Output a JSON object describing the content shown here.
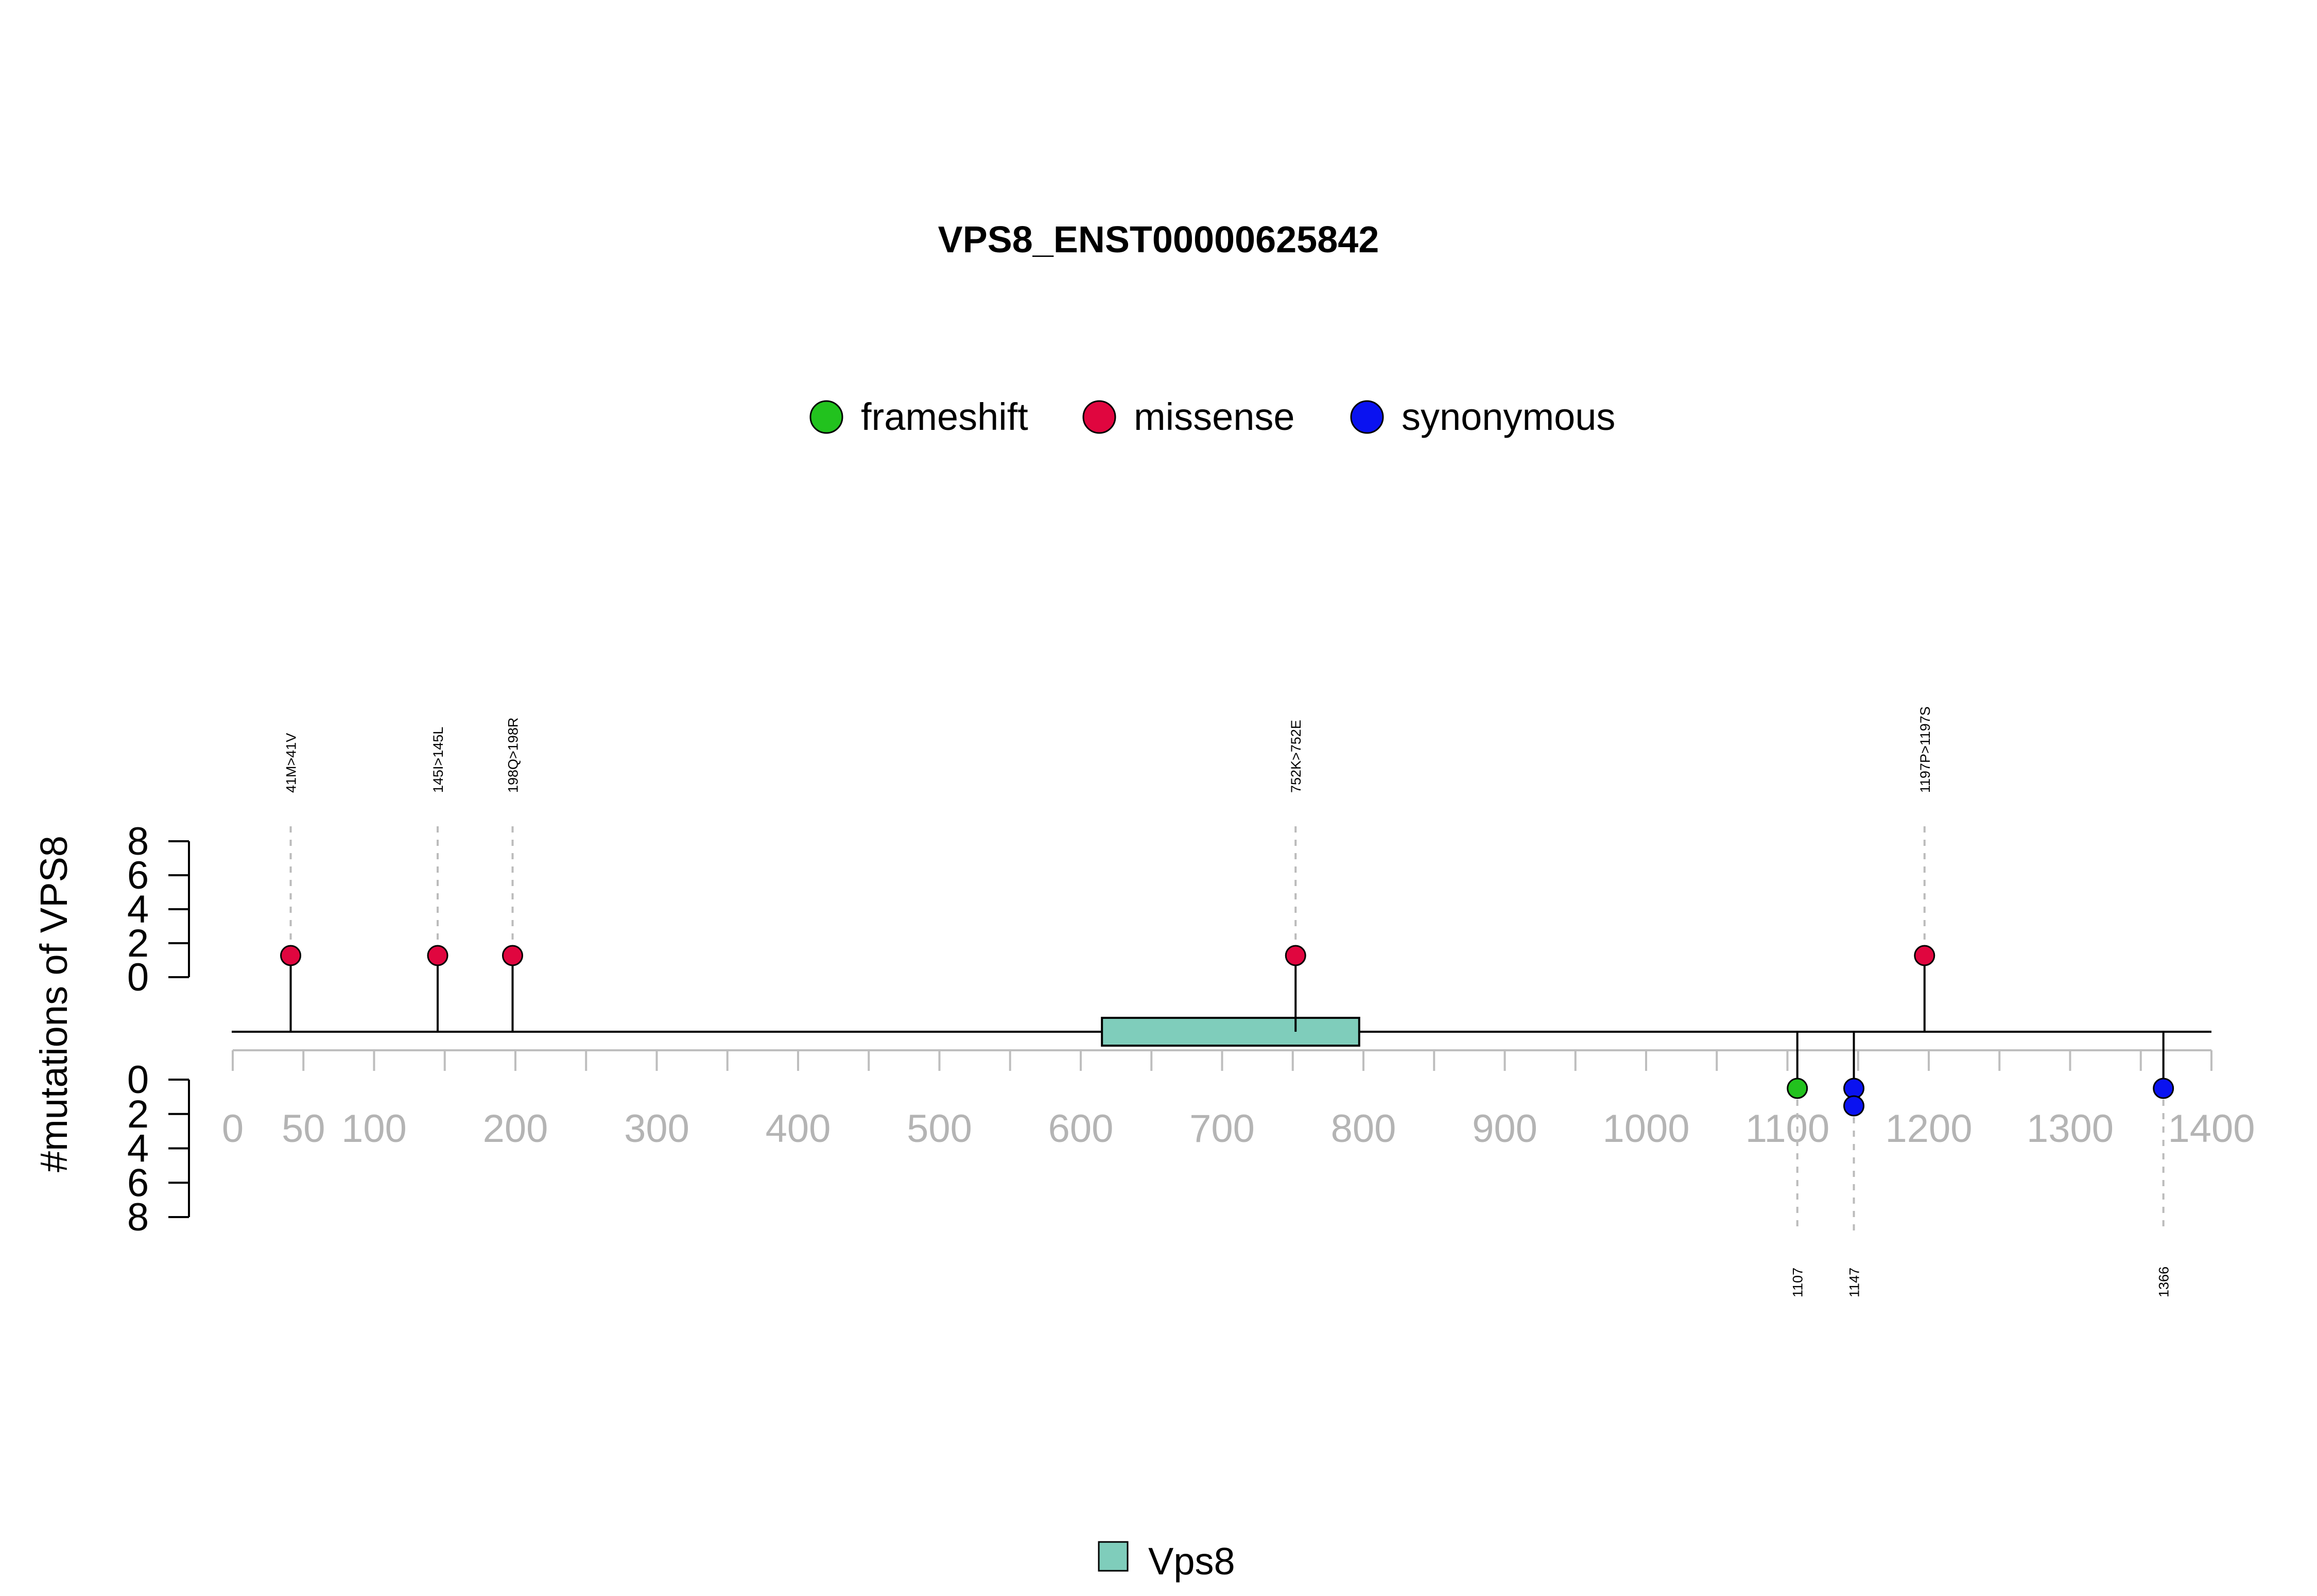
{
  "chart_data": {
    "type": "lollipop",
    "title": "VPS8_ENST00000625842",
    "ylabel": "#mutations of VPS8",
    "xlim": [
      0,
      1400
    ],
    "x_ticks": [
      0,
      50,
      100,
      200,
      300,
      400,
      500,
      600,
      700,
      800,
      900,
      1000,
      1100,
      1200,
      1300,
      1400
    ],
    "x_tick_labels": [
      "0",
      "50",
      "100",
      "200",
      "300",
      "400",
      "500",
      "600",
      "700",
      "800",
      "900",
      "1000",
      "1100",
      "1200",
      "1300",
      "1400"
    ],
    "y_ticks_top": [
      "0",
      "2",
      "4",
      "6",
      "8"
    ],
    "y_ticks_bottom": [
      "0",
      "2",
      "4",
      "6",
      "8"
    ],
    "ylim": [
      0,
      8
    ],
    "legend": [
      {
        "label": "frameshift",
        "color": "#22C21E"
      },
      {
        "label": "missense",
        "color": "#E0063F"
      },
      {
        "label": "synonymous",
        "color": "#0A12F0"
      }
    ],
    "domains": [
      {
        "name": "Vps8",
        "start": 615,
        "end": 797,
        "color": "#7FCDBB"
      }
    ],
    "domain_legend": "Vps8",
    "mutations_top": [
      {
        "position": 41,
        "count": 1,
        "type": "missense",
        "label": "41M>41V"
      },
      {
        "position": 145,
        "count": 1,
        "type": "missense",
        "label": "145I>145L"
      },
      {
        "position": 198,
        "count": 1,
        "type": "missense",
        "label": "198Q>198R"
      },
      {
        "position": 752,
        "count": 1,
        "type": "missense",
        "label": "752K>752E"
      },
      {
        "position": 1197,
        "count": 1,
        "type": "missense",
        "label": "1197P>1197S"
      }
    ],
    "mutations_bottom": [
      {
        "position": 1107,
        "count": 1,
        "type": "frameshift",
        "label": "1107"
      },
      {
        "position": 1147,
        "count": 2,
        "type": "synonymous",
        "label": "1147"
      },
      {
        "position": 1366,
        "count": 1,
        "type": "synonymous",
        "label": "1366"
      }
    ]
  }
}
